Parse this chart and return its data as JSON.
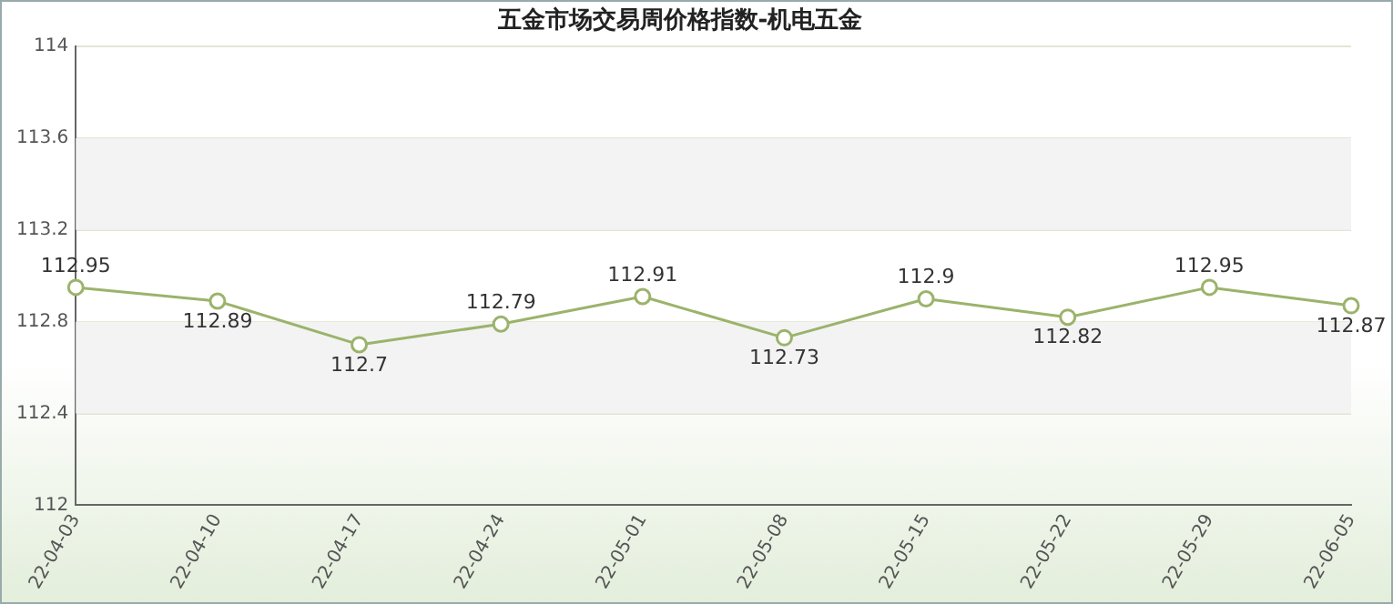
{
  "chart_data": {
    "type": "line",
    "title": "五金市场交易周价格指数-机电五金",
    "categories": [
      "22-04-03",
      "22-04-10",
      "22-04-17",
      "22-04-24",
      "22-05-01",
      "22-05-08",
      "22-05-15",
      "22-05-22",
      "22-05-29",
      "22-06-05"
    ],
    "series": [
      {
        "color": "#9bb36b",
        "values": [
          112.95,
          112.89,
          112.7,
          112.79,
          112.91,
          112.73,
          112.9,
          112.82,
          112.95,
          112.87
        ]
      }
    ],
    "ylim": [
      112,
      114
    ],
    "yticks": [
      112,
      112.4,
      112.8,
      113.2,
      113.6,
      114
    ],
    "grid": "y",
    "marker": "circle",
    "data_labels": true,
    "legend": false
  }
}
